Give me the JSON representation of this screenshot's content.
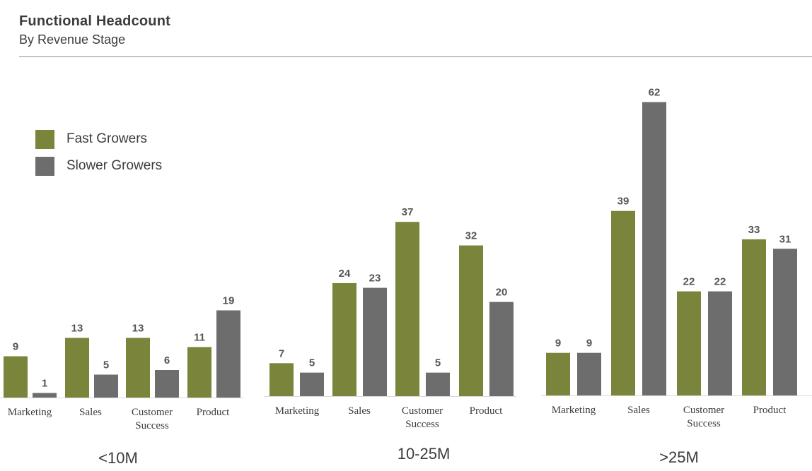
{
  "header": {
    "title": "Functional Headcount",
    "subtitle": "By Revenue Stage"
  },
  "legend": [
    {
      "label": "Fast Growers",
      "color": "#7a853b"
    },
    {
      "label": "Slower Growers",
      "color": "#6d6d6d"
    }
  ],
  "chart_data": [
    {
      "type": "bar",
      "group_label": "<10M",
      "categories": [
        [
          "Marketing"
        ],
        [
          "Sales"
        ],
        [
          "Customer",
          "Success"
        ],
        [
          "Product"
        ]
      ],
      "series": [
        {
          "name": "Fast Growers",
          "values": [
            9,
            13,
            13,
            11
          ]
        },
        {
          "name": "Slower Growers",
          "values": [
            1,
            5,
            6,
            19
          ]
        }
      ]
    },
    {
      "type": "bar",
      "group_label": "10-25M",
      "categories": [
        [
          "Marketing"
        ],
        [
          "Sales"
        ],
        [
          "Customer",
          "Success"
        ],
        [
          "Product"
        ]
      ],
      "series": [
        {
          "name": "Fast Growers",
          "values": [
            7,
            24,
            37,
            32
          ]
        },
        {
          "name": "Slower Growers",
          "values": [
            5,
            23,
            5,
            20
          ]
        }
      ]
    },
    {
      "type": "bar",
      "group_label": ">25M",
      "categories": [
        [
          "Marketing"
        ],
        [
          "Sales"
        ],
        [
          "Customer",
          "Success"
        ],
        [
          "Product"
        ]
      ],
      "series": [
        {
          "name": "Fast Growers",
          "values": [
            9,
            39,
            22,
            33
          ]
        },
        {
          "name": "Slower Growers",
          "values": [
            9,
            62,
            22,
            31
          ]
        }
      ]
    }
  ]
}
